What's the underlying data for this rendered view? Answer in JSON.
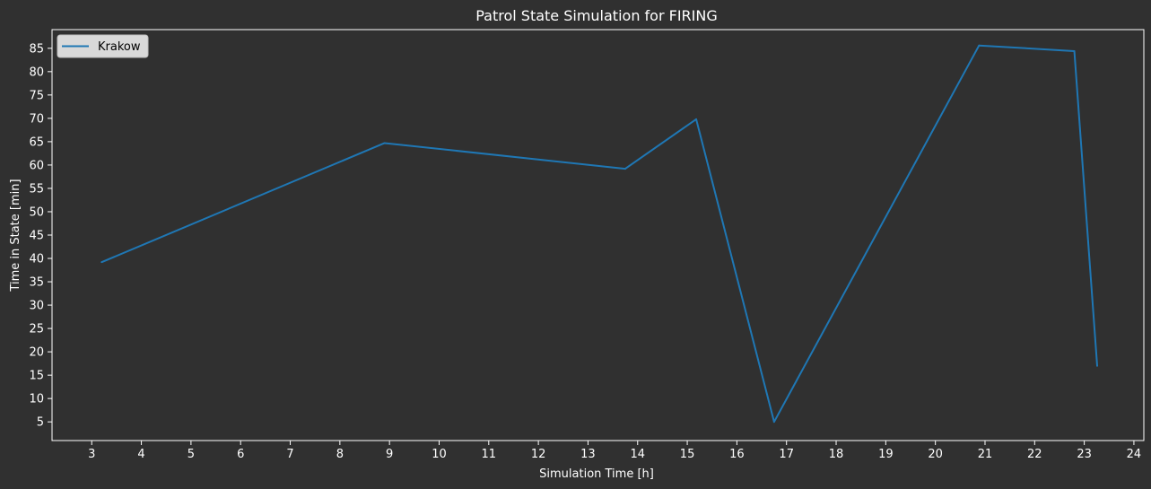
{
  "chart_data": {
    "type": "line",
    "title": "Patrol State Simulation for FIRING",
    "xlabel": "Simulation Time [h]",
    "ylabel": "Time in State [min]",
    "xlim": [
      2.2,
      24.2
    ],
    "ylim": [
      1.0,
      89.0
    ],
    "xticks": [
      3,
      4,
      5,
      6,
      7,
      8,
      9,
      10,
      11,
      12,
      13,
      14,
      15,
      16,
      17,
      18,
      19,
      20,
      21,
      22,
      23,
      24
    ],
    "yticks": [
      5,
      10,
      15,
      20,
      25,
      30,
      35,
      40,
      45,
      50,
      55,
      60,
      65,
      70,
      75,
      80,
      85
    ],
    "grid": false,
    "legend_position": "top-left",
    "series": [
      {
        "name": "Krakow",
        "color": "#1f77b4",
        "x": [
          3.2,
          8.9,
          13.75,
          15.18,
          16.75,
          20.88,
          22.8,
          23.26
        ],
        "y": [
          39.2,
          64.7,
          59.2,
          69.8,
          5.0,
          85.6,
          84.4,
          17.0
        ]
      }
    ]
  }
}
